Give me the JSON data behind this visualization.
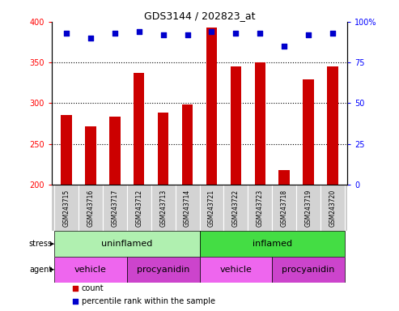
{
  "title": "GDS3144 / 202823_at",
  "samples": [
    "GSM243715",
    "GSM243716",
    "GSM243717",
    "GSM243712",
    "GSM243713",
    "GSM243714",
    "GSM243721",
    "GSM243722",
    "GSM243723",
    "GSM243718",
    "GSM243719",
    "GSM243720"
  ],
  "counts": [
    285,
    272,
    283,
    337,
    288,
    298,
    393,
    345,
    350,
    218,
    329,
    345
  ],
  "percentile_ranks": [
    93,
    90,
    93,
    94,
    92,
    92,
    94,
    93,
    93,
    85,
    92,
    93
  ],
  "ylim_left": [
    200,
    400
  ],
  "ylim_right": [
    0,
    100
  ],
  "yticks_left": [
    200,
    250,
    300,
    350,
    400
  ],
  "yticks_right": [
    0,
    25,
    50,
    75,
    100
  ],
  "bar_color": "#cc0000",
  "dot_color": "#0000cc",
  "stress_groups": [
    {
      "label": "uninflamed",
      "start": 0,
      "end": 6,
      "color": "#b0f0b0"
    },
    {
      "label": "inflamed",
      "start": 6,
      "end": 12,
      "color": "#44dd44"
    }
  ],
  "agent_groups": [
    {
      "label": "vehicle",
      "start": 0,
      "end": 3,
      "color": "#ee66ee"
    },
    {
      "label": "procyanidin",
      "start": 3,
      "end": 6,
      "color": "#cc44cc"
    },
    {
      "label": "vehicle",
      "start": 6,
      "end": 9,
      "color": "#ee66ee"
    },
    {
      "label": "procyanidin",
      "start": 9,
      "end": 12,
      "color": "#cc44cc"
    }
  ],
  "legend_count_color": "#cc0000",
  "legend_dot_color": "#0000cc",
  "tick_label_bg": "#cccccc",
  "plot_bg": "#ffffff",
  "grid_dotted_color": "#000000"
}
